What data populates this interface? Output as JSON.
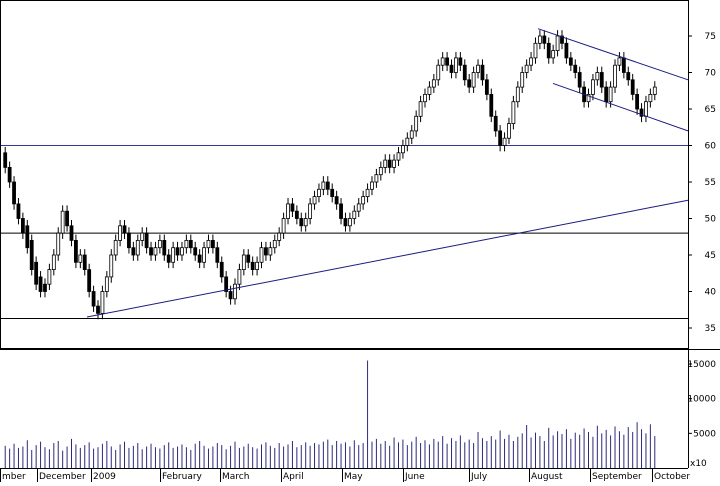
{
  "chart_data": [
    {
      "type": "candlestick",
      "panel": "price",
      "title": "",
      "xlabel": "",
      "ylabel": "",
      "ylim": [
        30,
        80
      ],
      "y_ticks": [
        35,
        40,
        45,
        50,
        55,
        60,
        65,
        70,
        75
      ],
      "grid": false,
      "series": [
        {
          "values": [
            [
              59,
              57
            ],
            [
              57,
              55
            ],
            [
              55,
              52
            ],
            [
              52,
              50
            ],
            [
              50,
              48
            ],
            [
              49,
              46
            ],
            [
              47,
              43
            ],
            [
              44,
              41
            ],
            [
              42,
              40
            ],
            [
              41,
              40
            ],
            [
              41,
              43
            ],
            [
              43,
              45
            ],
            [
              45,
              48
            ],
            [
              48,
              51
            ],
            [
              51,
              49
            ],
            [
              49,
              47
            ],
            [
              47,
              44
            ],
            [
              44,
              45
            ],
            [
              45,
              43
            ],
            [
              43,
              40
            ],
            [
              40,
              38
            ],
            [
              38,
              37
            ],
            [
              37,
              40
            ],
            [
              40,
              42
            ],
            [
              42,
              45
            ],
            [
              45,
              47
            ],
            [
              47,
              49
            ],
            [
              49,
              48
            ],
            [
              48,
              46
            ],
            [
              46,
              45
            ],
            [
              45,
              47
            ],
            [
              47,
              48
            ],
            [
              48,
              46
            ],
            [
              46,
              45
            ],
            [
              45,
              46
            ],
            [
              46,
              47
            ],
            [
              47,
              45
            ],
            [
              45,
              44
            ],
            [
              44,
              46
            ],
            [
              46,
              45
            ],
            [
              45,
              46
            ],
            [
              46,
              47
            ],
            [
              47,
              46
            ],
            [
              46,
              45
            ],
            [
              45,
              44
            ],
            [
              44,
              46
            ],
            [
              46,
              47
            ],
            [
              47,
              46
            ],
            [
              46,
              44
            ],
            [
              44,
              42
            ],
            [
              42,
              40
            ],
            [
              40,
              39
            ],
            [
              39,
              41
            ],
            [
              41,
              43
            ],
            [
              43,
              45
            ],
            [
              45,
              44
            ],
            [
              44,
              43
            ],
            [
              43,
              44
            ],
            [
              44,
              46
            ],
            [
              46,
              45
            ],
            [
              45,
              46
            ],
            [
              46,
              47
            ],
            [
              47,
              48
            ],
            [
              48,
              50
            ],
            [
              50,
              52
            ],
            [
              52,
              51
            ],
            [
              51,
              50
            ],
            [
              50,
              49
            ],
            [
              49,
              50
            ],
            [
              50,
              52
            ],
            [
              52,
              53
            ],
            [
              53,
              54
            ],
            [
              54,
              55
            ],
            [
              55,
              54
            ],
            [
              54,
              53
            ],
            [
              53,
              52
            ],
            [
              52,
              50
            ],
            [
              50,
              49
            ],
            [
              49,
              50
            ],
            [
              50,
              51
            ],
            [
              51,
              52
            ],
            [
              52,
              53
            ],
            [
              53,
              54
            ],
            [
              54,
              55
            ],
            [
              55,
              56
            ],
            [
              56,
              57
            ],
            [
              57,
              58
            ],
            [
              58,
              57
            ],
            [
              57,
              58
            ],
            [
              58,
              59
            ],
            [
              59,
              60
            ],
            [
              60,
              61
            ],
            [
              61,
              62
            ],
            [
              62,
              64
            ],
            [
              64,
              66
            ],
            [
              66,
              67
            ],
            [
              67,
              68
            ],
            [
              68,
              69
            ],
            [
              69,
              71
            ],
            [
              71,
              72
            ],
            [
              72,
              71
            ],
            [
              71,
              70
            ],
            [
              70,
              72
            ],
            [
              72,
              71
            ],
            [
              71,
              69
            ],
            [
              69,
              68
            ],
            [
              68,
              70
            ],
            [
              70,
              71
            ],
            [
              71,
              69
            ],
            [
              69,
              67
            ],
            [
              67,
              64
            ],
            [
              64,
              62
            ],
            [
              62,
              60
            ],
            [
              60,
              61
            ],
            [
              61,
              63
            ],
            [
              63,
              66
            ],
            [
              66,
              68
            ],
            [
              68,
              70
            ],
            [
              70,
              71
            ],
            [
              71,
              72
            ],
            [
              72,
              74
            ],
            [
              74,
              75
            ],
            [
              75,
              74
            ],
            [
              74,
              72
            ],
            [
              72,
              73
            ],
            [
              73,
              75
            ],
            [
              75,
              74
            ],
            [
              74,
              72
            ],
            [
              72,
              71
            ],
            [
              71,
              70
            ],
            [
              70,
              68
            ],
            [
              68,
              66
            ],
            [
              66,
              67
            ],
            [
              67,
              69
            ],
            [
              69,
              70
            ],
            [
              70,
              68
            ],
            [
              68,
              66
            ],
            [
              66,
              68
            ],
            [
              68,
              71
            ],
            [
              71,
              72
            ],
            [
              72,
              70
            ],
            [
              70,
              69
            ],
            [
              69,
              67
            ],
            [
              67,
              65
            ],
            [
              65,
              64
            ],
            [
              64,
              66
            ],
            [
              66,
              67
            ],
            [
              67,
              68
            ]
          ]
        }
      ],
      "horizontal_lines": [
        36.3,
        48,
        60
      ],
      "trend_lines": [
        {
          "from": [
            "Dec 2008",
            36.5
          ],
          "to": [
            "Oct 2009",
            52.5
          ]
        },
        {
          "from": [
            "Aug 2009",
            76
          ],
          "to": [
            "Oct 2009",
            69
          ]
        },
        {
          "from": [
            "Aug 2009",
            68.5
          ],
          "to": [
            "Oct 2009",
            62
          ]
        }
      ],
      "colors": {
        "candle": "#000000",
        "trendline": "#1a1a80",
        "hline_blue": "#3535a0",
        "hline_black": "#000000"
      }
    },
    {
      "type": "bar",
      "panel": "volume",
      "ylim": [
        0,
        16000
      ],
      "y_ticks": [
        5000,
        10000,
        15000
      ],
      "y_tick_labels": [
        "5000",
        "10000",
        "15000"
      ],
      "multiplier_label": "x10",
      "x_tick_labels": [
        "mber",
        "December",
        "2009",
        "February",
        "March",
        "April",
        "May",
        "June",
        "July",
        "August",
        "September",
        "October"
      ],
      "values": [
        3200,
        2800,
        3500,
        2900,
        3100,
        4000,
        2600,
        3300,
        3800,
        3000,
        2700,
        3600,
        3900,
        2500,
        3100,
        4200,
        3400,
        2900,
        3300,
        3700,
        2800,
        3000,
        3500,
        3900,
        3100,
        2600,
        3400,
        3800,
        2900,
        3200,
        3600,
        2700,
        3100,
        3500,
        3000,
        2800,
        3300,
        3700,
        2900,
        3100,
        3400,
        3000,
        2600,
        3500,
        3900,
        3200,
        2800,
        3100,
        3600,
        3300,
        2700,
        3200,
        3800,
        2900,
        3100,
        3500,
        3000,
        2800,
        3400,
        3700,
        3200,
        2900,
        3600,
        3100,
        3400,
        3900,
        3000,
        3300,
        3700,
        3200,
        3600,
        3400,
        3800,
        4100,
        3300,
        3900,
        3500,
        3700,
        3100,
        4000,
        3300,
        3600,
        15500,
        3800,
        4200,
        3500,
        3900,
        3200,
        4400,
        3700,
        4100,
        3300,
        3800,
        4500,
        3600,
        4000,
        3400,
        4200,
        3800,
        4600,
        3500,
        4300,
        3900,
        4700,
        3700,
        4100,
        3600,
        5200,
        4300,
        3900,
        4600,
        4100,
        5400,
        4200,
        4800,
        3900,
        4500,
        5000,
        6200,
        4400,
        5100,
        4600,
        3900,
        5800,
        4700,
        5300,
        4900,
        5600,
        4200,
        5100,
        4800,
        5700,
        5200,
        4500,
        6100,
        5000,
        5500,
        4700,
        6000,
        5300,
        4800,
        5900,
        5200,
        6600,
        5600,
        5000,
        6300,
        4600
      ]
    }
  ]
}
